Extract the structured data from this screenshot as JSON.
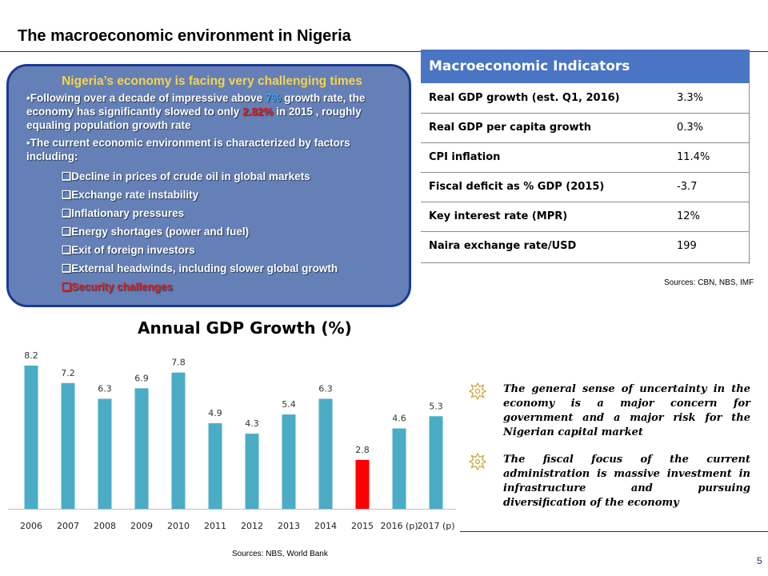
{
  "header": {
    "title": "The macroeconomic environment in Nigeria"
  },
  "callout": {
    "heading": "Nigeria’s economy is facing very challenging times",
    "para1_pre": "Following over a decade of impressive above ",
    "para1_hl1": "7%",
    "para1_mid": " growth rate, the economy has significantly slowed to only ",
    "para1_hl2": "2.82%",
    "para1_post": " in 2015 , roughly equaling population growth rate",
    "para2": "The current economic environment is characterized by factors including:",
    "factors": [
      "Decline in prices of crude oil in global markets",
      "Exchange rate instability",
      "Inflationary pressures",
      "Energy shortages (power and fuel)",
      "Exit of foreign investors",
      "External headwinds, including slower global growth",
      "Security challenges"
    ],
    "bullet_mark": "▪",
    "factor_mark": "❑",
    "colors": {
      "fill": "#6480b6",
      "border": "#1c3a94",
      "heading": "#f7d34a",
      "highlight_blue": "#3fa9f5",
      "highlight_red": "#e0211b"
    }
  },
  "indicators": {
    "title": "Macroeconomic Indicators",
    "rows": [
      {
        "label": "Real GDP growth (est. Q1, 2016)",
        "value": "3.3%"
      },
      {
        "label": "Real GDP per capita growth",
        "value": "0.3%"
      },
      {
        "label": "CPI inflation",
        "value": "11.4%"
      },
      {
        "label": "Fiscal deficit as % GDP (2015)",
        "value": "-3.7"
      },
      {
        "label": "Key interest rate (MPR)",
        "value": "12%"
      },
      {
        "label": "Naira exchange rate/USD",
        "value": "199"
      }
    ],
    "source": "Sources: CBN, NBS, IMF"
  },
  "chart_data": {
    "type": "bar",
    "title": "Annual GDP Growth (%)",
    "categories": [
      "2006",
      "2007",
      "2008",
      "2009",
      "2010",
      "2011",
      "2012",
      "2013",
      "2014",
      "2015",
      "2016 (p)",
      "2017 (p)"
    ],
    "values": [
      8.2,
      7.2,
      6.3,
      6.9,
      7.8,
      4.9,
      4.3,
      5.4,
      6.3,
      2.8,
      4.6,
      5.3
    ],
    "value_labels": [
      "8.2",
      "7.2",
      "6.3",
      "6.9",
      "7.8",
      "4.9",
      "4.3",
      "5.4",
      "6.3",
      "2.8",
      "4.6",
      "5.3"
    ],
    "xlabel": "",
    "ylabel": "",
    "ylim": [
      0,
      8.2
    ],
    "grid": false,
    "legend": "none",
    "bar_color": "#4bacc6",
    "highlight_color": "#ff0000",
    "highlight_index": 9
  },
  "chart_source": "Sources: NBS, World Bank",
  "notes": {
    "icon": "sun-bullet-icon",
    "icon_color": "#c9a227",
    "items": [
      "The general sense of uncertainty in the economy is a major concern for government and a major risk for the Nigerian capital market",
      "The fiscal focus of the current administration is massive investment in infrastructure and pursuing diversification of the economy"
    ]
  },
  "footer": {
    "page_number": "5"
  }
}
